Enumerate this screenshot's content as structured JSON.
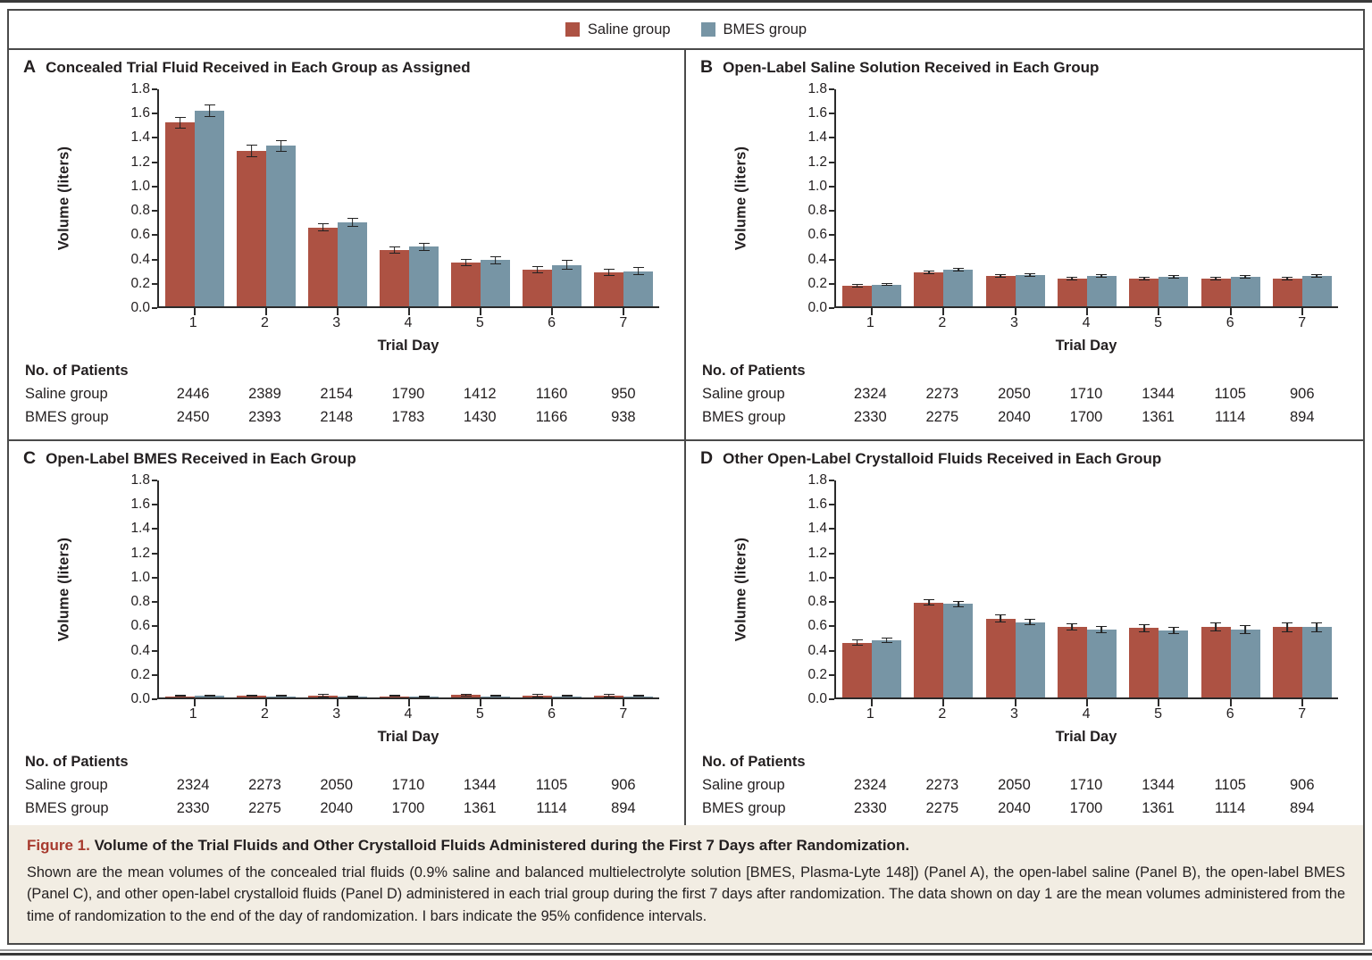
{
  "legend": {
    "items": [
      {
        "label": "Saline group",
        "color": "#ad5243"
      },
      {
        "label": "BMES group",
        "color": "#7795a5"
      }
    ]
  },
  "labels": {
    "no_of_patients": "No. of Patients"
  },
  "chart_data": [
    {
      "type": "bar",
      "panel": "A",
      "title": "Concealed Trial Fluid Received in Each Group as Assigned",
      "xlabel": "Trial Day",
      "ylabel": "Volume (liters)",
      "ylim": [
        0,
        1.8
      ],
      "ytick_step": 0.2,
      "grid": false,
      "legend_position": "top-center",
      "error_bars": "95% confidence intervals",
      "categories": [
        "1",
        "2",
        "3",
        "4",
        "5",
        "6",
        "7"
      ],
      "series": [
        {
          "name": "Saline group",
          "color": "#ad5243",
          "values": [
            1.51,
            1.28,
            0.65,
            0.46,
            0.36,
            0.3,
            0.28
          ],
          "ci95": [
            0.05,
            0.05,
            0.035,
            0.03,
            0.03,
            0.03,
            0.03
          ]
        },
        {
          "name": "BMES group",
          "color": "#7795a5",
          "values": [
            1.61,
            1.32,
            0.69,
            0.49,
            0.38,
            0.34,
            0.29
          ],
          "ci95": [
            0.05,
            0.05,
            0.035,
            0.035,
            0.035,
            0.04,
            0.035
          ]
        }
      ],
      "patients": {
        "rows": [
          {
            "label": "Saline group",
            "values": [
              "2446",
              "2389",
              "2154",
              "1790",
              "1412",
              "1160",
              "950"
            ]
          },
          {
            "label": "BMES group",
            "values": [
              "2450",
              "2393",
              "2148",
              "1783",
              "1430",
              "1166",
              "938"
            ]
          }
        ]
      }
    },
    {
      "type": "bar",
      "panel": "B",
      "title": "Open-Label Saline Solution Received in Each Group",
      "xlabel": "Trial Day",
      "ylabel": "Volume (liters)",
      "ylim": [
        0,
        1.8
      ],
      "ytick_step": 0.2,
      "grid": false,
      "legend_position": "top-center",
      "error_bars": "95% confidence intervals",
      "categories": [
        "1",
        "2",
        "3",
        "4",
        "5",
        "6",
        "7"
      ],
      "series": [
        {
          "name": "Saline group",
          "color": "#ad5243",
          "values": [
            0.17,
            0.28,
            0.25,
            0.23,
            0.23,
            0.23,
            0.23
          ],
          "ci95": [
            0.012,
            0.015,
            0.015,
            0.015,
            0.015,
            0.015,
            0.015
          ]
        },
        {
          "name": "BMES group",
          "color": "#7795a5",
          "values": [
            0.18,
            0.3,
            0.26,
            0.25,
            0.24,
            0.24,
            0.25
          ],
          "ci95": [
            0.012,
            0.015,
            0.015,
            0.015,
            0.015,
            0.015,
            0.015
          ]
        }
      ],
      "patients": {
        "rows": [
          {
            "label": "Saline group",
            "values": [
              "2324",
              "2273",
              "2050",
              "1710",
              "1344",
              "1105",
              "906"
            ]
          },
          {
            "label": "BMES group",
            "values": [
              "2330",
              "2275",
              "2040",
              "1700",
              "1361",
              "1114",
              "894"
            ]
          }
        ]
      }
    },
    {
      "type": "bar",
      "panel": "C",
      "title": "Open-Label BMES Received in Each Group",
      "xlabel": "Trial Day",
      "ylabel": "Volume (liters)",
      "ylim": [
        0,
        1.8
      ],
      "ytick_step": 0.2,
      "grid": false,
      "legend_position": "top-center",
      "error_bars": "95% confidence intervals",
      "categories": [
        "1",
        "2",
        "3",
        "4",
        "5",
        "6",
        "7"
      ],
      "series": [
        {
          "name": "Saline group",
          "color": "#ad5243",
          "values": [
            0.01,
            0.015,
            0.015,
            0.01,
            0.02,
            0.015,
            0.015
          ],
          "ci95": [
            0.006,
            0.008,
            0.012,
            0.006,
            0.012,
            0.012,
            0.012
          ]
        },
        {
          "name": "BMES group",
          "color": "#7795a5",
          "values": [
            0.015,
            0.01,
            0.005,
            0.005,
            0.01,
            0.008,
            0.008
          ],
          "ci95": [
            0.005,
            0.005,
            0.003,
            0.003,
            0.005,
            0.004,
            0.004
          ]
        }
      ],
      "patients": {
        "rows": [
          {
            "label": "Saline group",
            "values": [
              "2324",
              "2273",
              "2050",
              "1710",
              "1344",
              "1105",
              "906"
            ]
          },
          {
            "label": "BMES group",
            "values": [
              "2330",
              "2275",
              "2040",
              "1700",
              "1361",
              "1114",
              "894"
            ]
          }
        ]
      }
    },
    {
      "type": "bar",
      "panel": "D",
      "title": "Other Open-Label Crystalloid Fluids Received in Each Group",
      "xlabel": "Trial Day",
      "ylabel": "Volume (liters)",
      "ylim": [
        0,
        1.8
      ],
      "ytick_step": 0.2,
      "grid": false,
      "legend_position": "top-center",
      "error_bars": "95% confidence intervals",
      "categories": [
        "1",
        "2",
        "3",
        "4",
        "5",
        "6",
        "7"
      ],
      "series": [
        {
          "name": "Saline group",
          "color": "#ad5243",
          "values": [
            0.45,
            0.78,
            0.65,
            0.58,
            0.57,
            0.58,
            0.58
          ],
          "ci95": [
            0.025,
            0.025,
            0.03,
            0.03,
            0.03,
            0.035,
            0.04
          ]
        },
        {
          "name": "BMES group",
          "color": "#7795a5",
          "values": [
            0.47,
            0.77,
            0.62,
            0.56,
            0.55,
            0.56,
            0.58
          ],
          "ci95": [
            0.025,
            0.025,
            0.025,
            0.03,
            0.03,
            0.035,
            0.04
          ]
        }
      ],
      "patients": {
        "rows": [
          {
            "label": "Saline group",
            "values": [
              "2324",
              "2273",
              "2050",
              "1710",
              "1344",
              "1105",
              "906"
            ]
          },
          {
            "label": "BMES group",
            "values": [
              "2330",
              "2275",
              "2040",
              "1700",
              "1361",
              "1114",
              "894"
            ]
          }
        ]
      }
    }
  ],
  "caption": {
    "figure_label": "Figure 1.",
    "title": "Volume of the Trial Fluids and Other Crystalloid Fluids Administered during the First 7 Days after Randomization.",
    "body": "Shown are the mean volumes of the concealed trial fluids (0.9% saline and balanced multielectrolyte solution [BMES, Plasma-Lyte 148]) (Panel A), the open-label saline (Panel B), the open-label BMES (Panel C), and other open-label crystalloid fluids (Panel D) administered in each trial group during the first 7 days after randomization. The data shown on day 1 are the mean volumes administered from the time of randomization to the end of the day of randomization. I bars indicate the 95% confidence intervals."
  },
  "colors": {
    "saline": "#ad5243",
    "bmes": "#7795a5",
    "axis": "#2b2b2b",
    "caption_background": "#f2ede3",
    "figure_label_red": "#a73a2e",
    "border": "#4a4a4a"
  }
}
